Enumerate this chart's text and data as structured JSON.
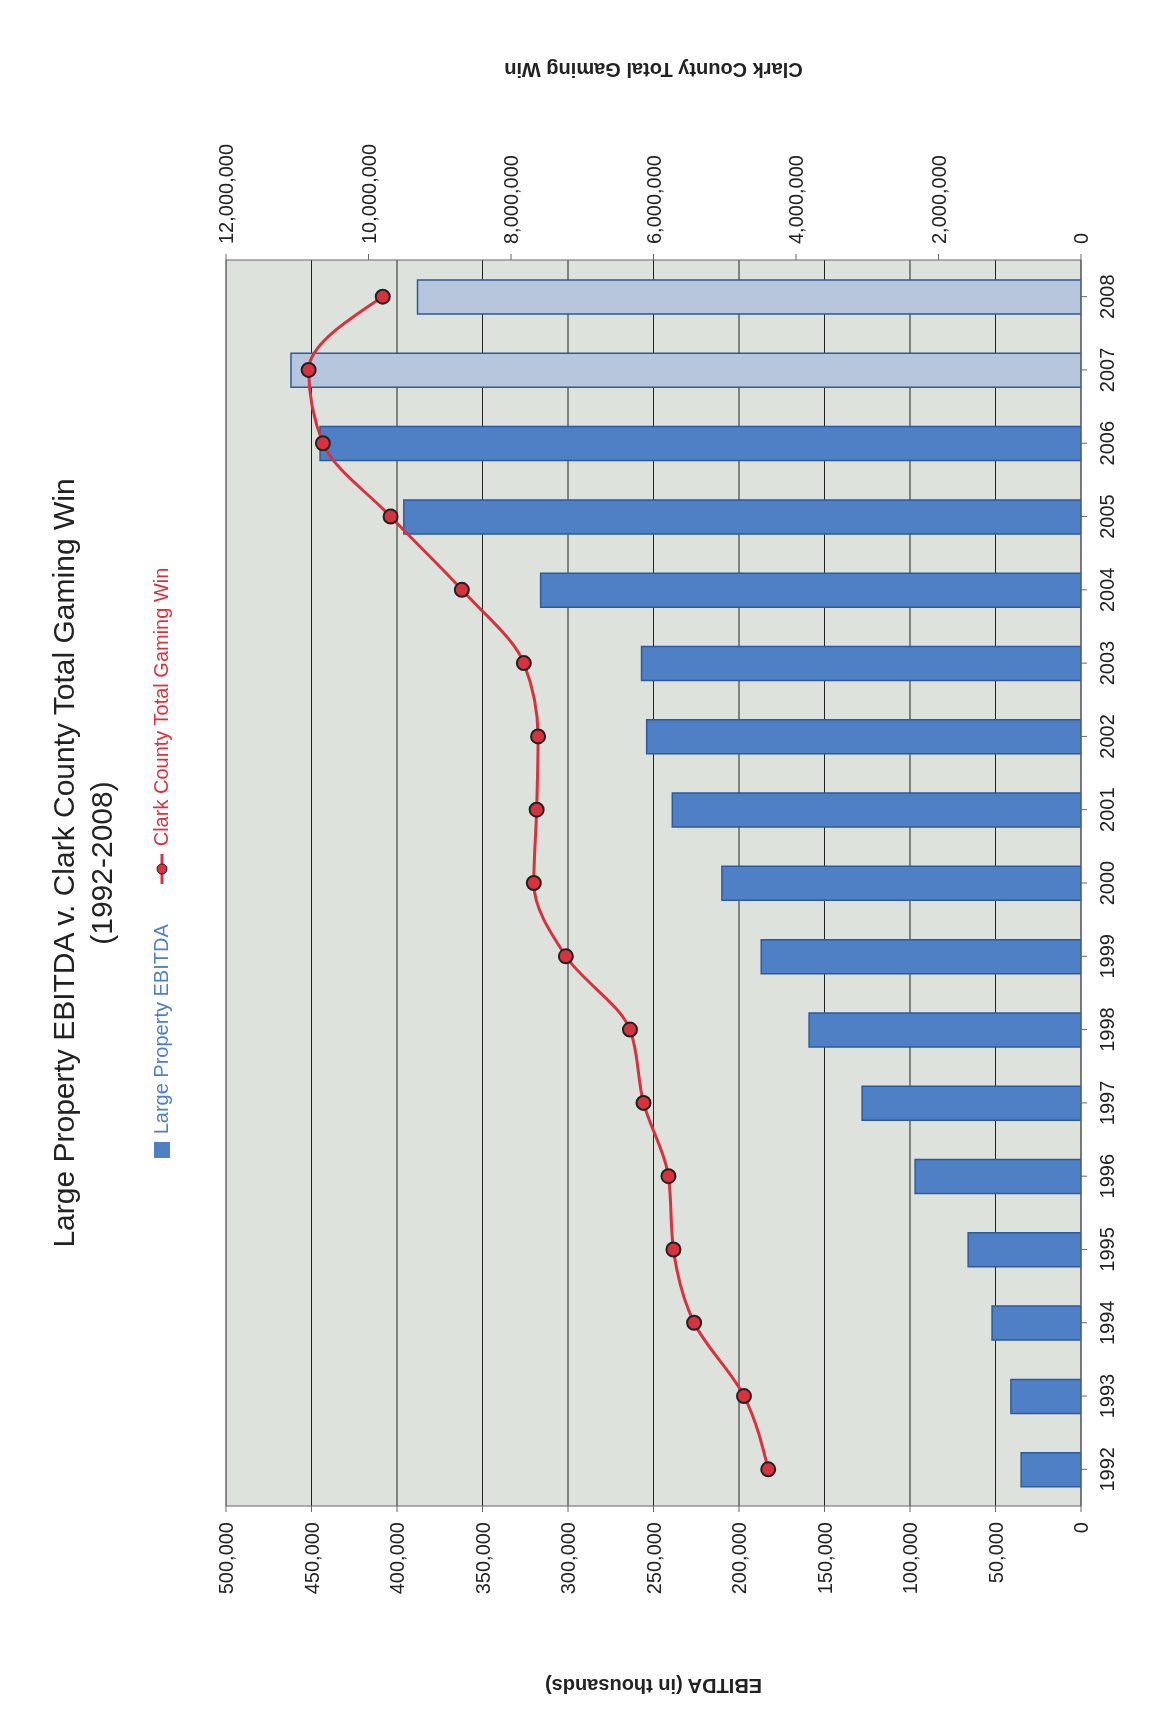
{
  "chart_data": {
    "type": "bar",
    "orientation": "horizontal",
    "title": "Large Property EBITDA v. Clark County Total Gaming Win",
    "subtitle": "(1992-2008)",
    "categories": [
      "2008",
      "2007",
      "2006",
      "2005",
      "2004",
      "2003",
      "2002",
      "2001",
      "2000",
      "1999",
      "1998",
      "1997",
      "1996",
      "1995",
      "1994",
      "1993",
      "1992"
    ],
    "series": [
      {
        "name": "Large Property EBITDA",
        "color": "#4f7fc4",
        "colors": [
          "#b7c6dc",
          "#b7c6dc",
          "#4f7fc4",
          "#4f7fc4",
          "#4f7fc4",
          "#4f7fc4",
          "#4f7fc4",
          "#4f7fc4",
          "#4f7fc4",
          "#4f7fc4",
          "#4f7fc4",
          "#4f7fc4",
          "#4f7fc4",
          "#4f7fc4",
          "#4f7fc4",
          "#4f7fc4",
          "#4f7fc4"
        ],
        "values": [
          388000,
          462000,
          445000,
          396000,
          316000,
          257000,
          254000,
          239000,
          210000,
          187000,
          159000,
          128000,
          97000,
          66000,
          52000,
          41000,
          35000
        ]
      },
      {
        "name": "Clark County Total Gaming Win",
        "type": "line",
        "axis": "x2",
        "color": "#d8323e",
        "values": [
          9800000,
          10840000,
          10640000,
          9690000,
          8690000,
          7820000,
          7620000,
          7640000,
          7680000,
          7230000,
          6330000,
          6140000,
          5790000,
          5720000,
          5430000,
          4730000,
          4390000
        ]
      }
    ],
    "xlabel": "EBITDA (in thousands)",
    "x2label": "Clark County Total Gaming Win",
    "xlim": [
      500000,
      0
    ],
    "xticks": [
      0,
      {
        "value": 50000,
        "label": "50,000"
      },
      {
        "value": 100000,
        "label": "100,000"
      },
      {
        "value": 150000,
        "label": "150,000"
      },
      {
        "value": 200000,
        "label": "200,000"
      },
      {
        "value": 250000,
        "label": "250,000"
      },
      {
        "value": 300000,
        "label": "300,000"
      },
      {
        "value": 350000,
        "label": "350,000"
      },
      {
        "value": 400000,
        "label": "400,000"
      },
      {
        "value": 450000,
        "label": "450,000"
      },
      {
        "value": 500000,
        "label": "500,000"
      }
    ],
    "x2lim": [
      12000000,
      0
    ],
    "x2ticks": [
      0,
      {
        "value": 2000000,
        "label": "2,000,000"
      },
      {
        "value": 4000000,
        "label": "4,000,000"
      },
      {
        "value": 6000000,
        "label": "6,000,000"
      },
      {
        "value": 8000000,
        "label": "8,000,000"
      },
      {
        "value": 10000000,
        "label": "10,000,000"
      },
      {
        "value": 12000000,
        "label": "12,000,000"
      }
    ],
    "grid": "x",
    "legend": "left",
    "marker": "circle",
    "line_style": "solid"
  }
}
